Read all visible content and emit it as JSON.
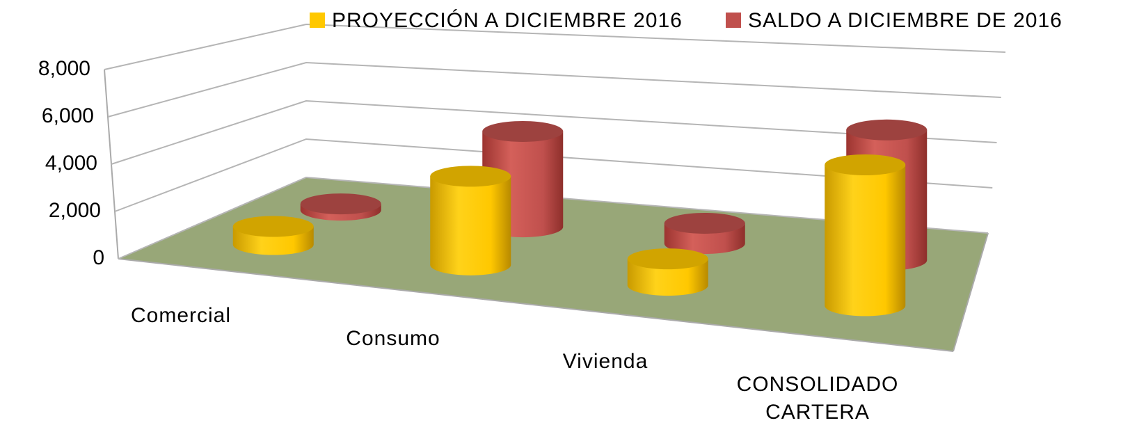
{
  "chart_data": {
    "type": "bar3d",
    "categories": [
      "Comercial",
      "Consumo",
      "Vivienda",
      "CONSOLIDADO CARTERA"
    ],
    "series": [
      {
        "name": "PROYECCIÓN A DICIEMBRE 2016",
        "color": "#ffc800",
        "values": [
          800,
          3800,
          1100,
          5700
        ]
      },
      {
        "name": "SALDO A DICIEMBRE DE 2016",
        "color": "#c0504d",
        "values": [
          300,
          4400,
          900,
          5600
        ]
      }
    ],
    "ylim": [
      0,
      8000
    ],
    "yticks": [
      0,
      {
        "value": 2000,
        "label": "2,000"
      },
      {
        "value": 4000,
        "label": "4,000"
      },
      {
        "value": 6000,
        "label": "6,000"
      },
      {
        "value": 8000,
        "label": "8,000"
      }
    ],
    "grid": true,
    "legend": "top"
  }
}
